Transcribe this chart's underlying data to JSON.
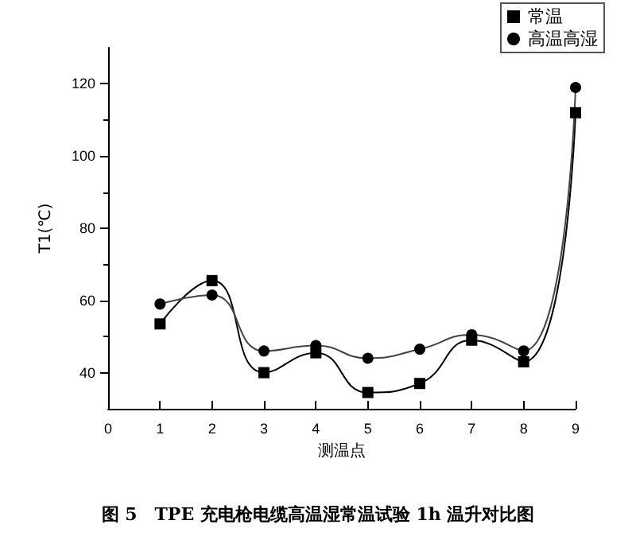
{
  "chart_data": {
    "type": "line",
    "xlabel": "测温点",
    "ylabel": "T1(℃)",
    "x": [
      1,
      2,
      3,
      4,
      5,
      6,
      7,
      8,
      9
    ],
    "series": [
      {
        "name": "常温",
        "color": "#000000",
        "marker": "square",
        "values": [
          53.5,
          65.5,
          40,
          45.5,
          34.5,
          37,
          49,
          43,
          112
        ]
      },
      {
        "name": "高温高湿",
        "color": "#444444",
        "marker": "circle",
        "values": [
          59,
          61.5,
          46,
          47.5,
          44,
          46.5,
          50.5,
          46,
          119
        ]
      }
    ],
    "xlim": [
      0,
      9
    ],
    "xticks": [
      0,
      1,
      2,
      3,
      4,
      5,
      6,
      7,
      8,
      9
    ],
    "ylim": [
      30,
      130
    ],
    "yticks": [
      40,
      60,
      80,
      100,
      120
    ],
    "grid": false,
    "legend": "top right",
    "annotations": [
      "图 5　TPE 充电枪电缆高温湿常温试验 1h 温升对比图"
    ]
  }
}
